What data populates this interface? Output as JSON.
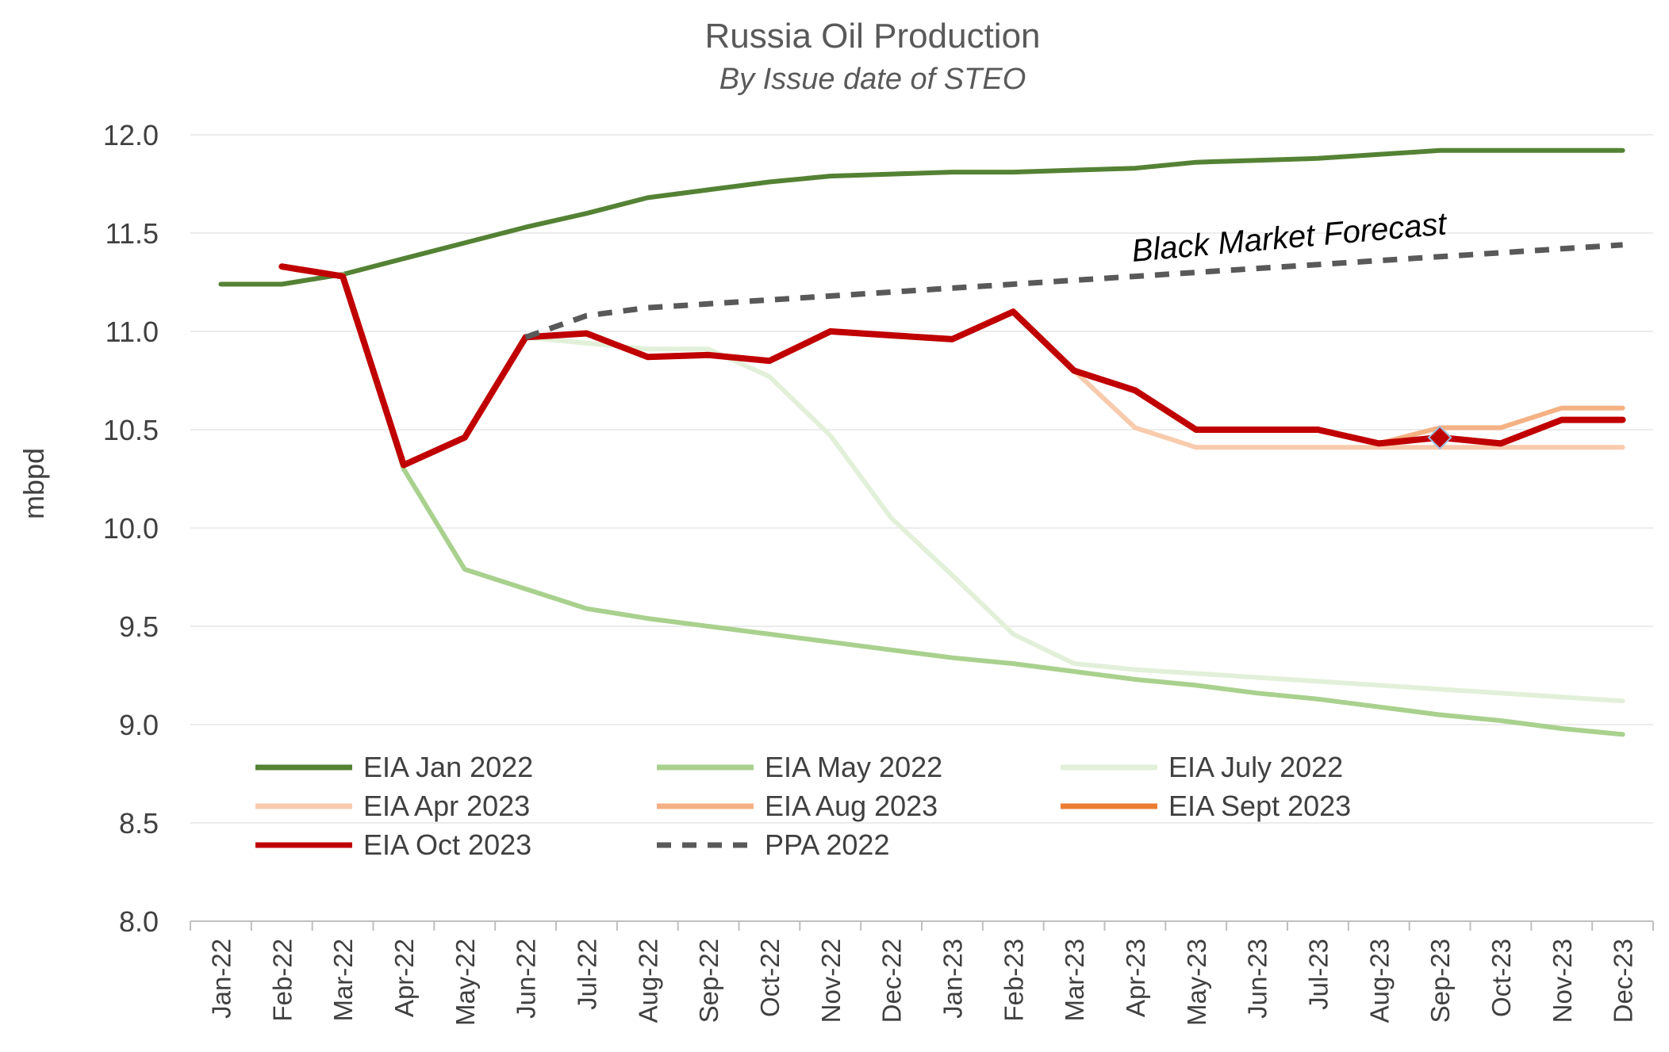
{
  "chart_data": {
    "type": "line",
    "title": "Russia Oil Production",
    "subtitle": "By Issue date of STEO",
    "ylabel": "mbpd",
    "xlabel": "",
    "ylim": [
      8.0,
      12.0
    ],
    "yticks": [
      "8.0",
      "8.5",
      "9.0",
      "9.5",
      "10.0",
      "10.5",
      "11.0",
      "11.5",
      "12.0"
    ],
    "grid": true,
    "legend_position": "bottom-left",
    "annotation": "Black Market Forecast",
    "categories": [
      "Jan-22",
      "Feb-22",
      "Mar-22",
      "Apr-22",
      "May-22",
      "Jun-22",
      "Jul-22",
      "Aug-22",
      "Sep-22",
      "Oct-22",
      "Nov-22",
      "Dec-22",
      "Jan-23",
      "Feb-23",
      "Mar-23",
      "Apr-23",
      "May-23",
      "Jun-23",
      "Jul-23",
      "Aug-23",
      "Sep-23",
      "Oct-23",
      "Nov-23",
      "Dec-23"
    ],
    "series": [
      {
        "name": "EIA Jan 2022",
        "color": "#548235",
        "style": "solid",
        "values": [
          11.24,
          11.24,
          11.29,
          11.37,
          11.45,
          11.53,
          11.6,
          11.68,
          11.72,
          11.76,
          11.79,
          11.8,
          11.81,
          11.81,
          11.82,
          11.83,
          11.86,
          11.87,
          11.88,
          11.9,
          11.92,
          11.92,
          11.92,
          11.92
        ]
      },
      {
        "name": "EIA May 2022",
        "color": "#a9d18e",
        "style": "solid",
        "values": [
          null,
          null,
          11.29,
          10.3,
          9.79,
          9.69,
          9.59,
          9.54,
          9.5,
          9.46,
          9.42,
          9.38,
          9.34,
          9.31,
          9.27,
          9.23,
          9.2,
          9.16,
          9.13,
          9.09,
          9.05,
          9.02,
          8.98,
          8.95
        ]
      },
      {
        "name": "EIA July 2022",
        "color": "#e2f0d9",
        "style": "solid",
        "values": [
          null,
          null,
          null,
          null,
          null,
          10.97,
          10.94,
          10.91,
          10.91,
          10.77,
          10.47,
          10.05,
          9.76,
          9.46,
          9.31,
          9.28,
          9.26,
          9.24,
          9.22,
          9.2,
          9.18,
          9.16,
          9.14,
          9.12
        ]
      },
      {
        "name": "EIA Apr 2023",
        "color": "#f8cbad",
        "style": "solid",
        "values": [
          null,
          null,
          null,
          null,
          null,
          null,
          null,
          null,
          null,
          null,
          null,
          null,
          null,
          11.1,
          10.8,
          10.51,
          10.41,
          10.41,
          10.41,
          10.41,
          10.41,
          10.41,
          10.41,
          10.41
        ]
      },
      {
        "name": "EIA Aug 2023",
        "color": "#f4b183",
        "style": "solid",
        "values": [
          null,
          null,
          null,
          null,
          null,
          null,
          null,
          null,
          null,
          null,
          null,
          null,
          null,
          null,
          null,
          null,
          null,
          null,
          null,
          10.43,
          10.51,
          10.51,
          10.61,
          10.61
        ]
      },
      {
        "name": "EIA Sept 2023",
        "color": "#ed7d31",
        "style": "solid",
        "values": [
          null,
          null,
          null,
          null,
          null,
          null,
          null,
          null,
          null,
          null,
          null,
          null,
          null,
          null,
          null,
          null,
          null,
          null,
          null,
          null,
          null,
          null,
          null,
          null
        ]
      },
      {
        "name": "EIA Oct 2023",
        "color": "#c00000",
        "style": "solid",
        "values": [
          null,
          11.33,
          11.28,
          10.32,
          10.46,
          10.97,
          10.99,
          10.87,
          10.88,
          10.85,
          11.0,
          10.98,
          10.96,
          11.1,
          10.8,
          10.7,
          10.5,
          10.5,
          10.5,
          10.43,
          10.46,
          10.43,
          10.55,
          10.55
        ]
      },
      {
        "name": "PPA 2022",
        "color": "#595959",
        "style": "dashed",
        "values": [
          null,
          null,
          null,
          null,
          null,
          10.97,
          11.08,
          11.12,
          11.14,
          11.16,
          11.18,
          11.2,
          11.22,
          11.24,
          11.26,
          11.28,
          11.3,
          11.32,
          11.34,
          11.36,
          11.38,
          11.4,
          11.42,
          11.44
        ]
      }
    ],
    "marker": {
      "series": "EIA Oct 2023",
      "category": "Sep-23",
      "value": 10.46,
      "color": "#c00000"
    }
  }
}
